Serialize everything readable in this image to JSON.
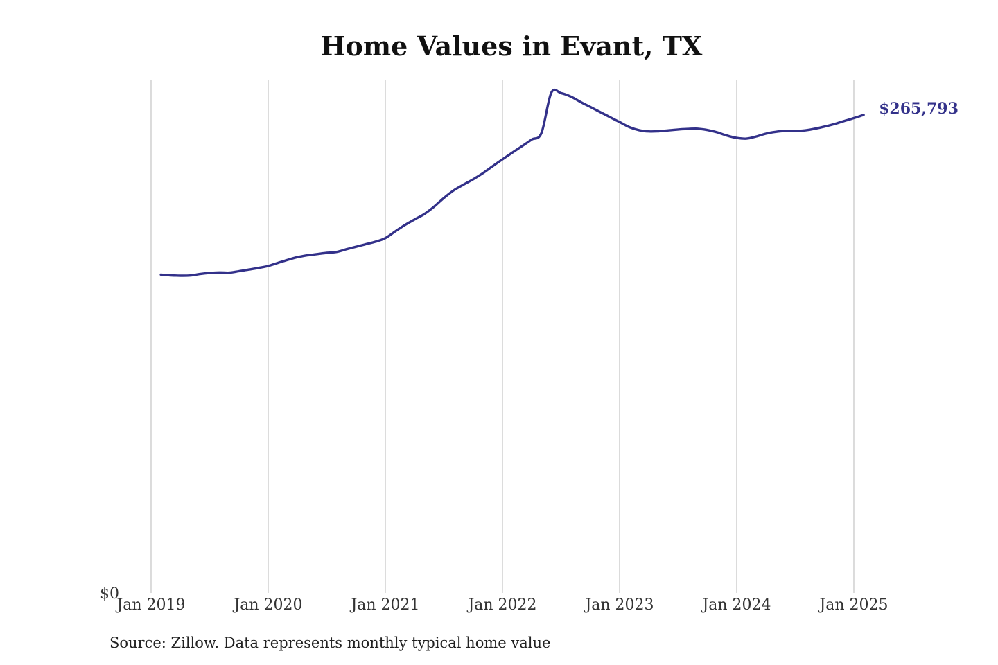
{
  "chart_data": {
    "type": "line",
    "title": "Home Values in Evant, TX",
    "xlabel": "",
    "ylabel": "",
    "x_ticks": [
      "Jan 2019",
      "Jan 2020",
      "Jan 2021",
      "Jan 2022",
      "Jan 2023",
      "Jan 2024",
      "Jan 2025"
    ],
    "y_ticks": [
      "$0"
    ],
    "ylim": [
      0,
      285000
    ],
    "xlim": [
      "2019-01",
      "2025-03"
    ],
    "grid": {
      "vertical": true,
      "horizontal": false
    },
    "legend": "none",
    "end_label": "$265,793",
    "line_color": "#33318a",
    "series": [
      {
        "x": [
          "2019-02",
          "2019-03",
          "2019-04",
          "2019-05",
          "2019-06",
          "2019-07",
          "2019-08",
          "2019-09",
          "2019-10",
          "2019-11",
          "2019-12",
          "2020-01",
          "2020-02",
          "2020-03",
          "2020-04",
          "2020-05",
          "2020-06",
          "2020-07",
          "2020-08",
          "2020-09",
          "2020-10",
          "2020-11",
          "2020-12",
          "2021-01",
          "2021-02",
          "2021-03",
          "2021-04",
          "2021-05",
          "2021-06",
          "2021-07",
          "2021-08",
          "2021-09",
          "2021-10",
          "2021-11",
          "2021-12",
          "2022-01",
          "2022-02",
          "2022-03",
          "2022-04",
          "2022-05",
          "2022-06",
          "2022-07",
          "2022-08",
          "2022-09",
          "2022-10",
          "2022-11",
          "2022-12",
          "2023-01",
          "2023-02",
          "2023-03",
          "2023-04",
          "2023-05",
          "2023-06",
          "2023-07",
          "2023-08",
          "2023-09",
          "2023-10",
          "2023-11",
          "2023-12",
          "2024-01",
          "2024-02",
          "2024-03",
          "2024-04",
          "2024-05",
          "2024-06",
          "2024-07",
          "2024-08",
          "2024-09",
          "2024-10",
          "2024-11",
          "2024-12",
          "2025-01",
          "2025-02"
        ],
        "values": [
          177000,
          176600,
          176400,
          176500,
          177300,
          177900,
          178200,
          178100,
          178900,
          179800,
          180700,
          181800,
          183500,
          185200,
          186700,
          187700,
          188400,
          189100,
          189600,
          191100,
          192500,
          193900,
          195300,
          197300,
          201000,
          204600,
          207700,
          210700,
          214800,
          219600,
          223800,
          227000,
          230000,
          233400,
          237300,
          241100,
          244800,
          248400,
          252100,
          255800,
          278100,
          277900,
          276000,
          273000,
          270200,
          267400,
          264600,
          261800,
          259000,
          257300,
          256600,
          256700,
          257200,
          257700,
          258000,
          258100,
          257400,
          256100,
          254300,
          253000,
          252600,
          253800,
          255400,
          256400,
          256900,
          256800,
          257200,
          258100,
          259300,
          260700,
          262400,
          264000,
          265793
        ]
      }
    ]
  },
  "footer": {
    "source": "Source: Zillow. Data represents monthly typical home value"
  }
}
